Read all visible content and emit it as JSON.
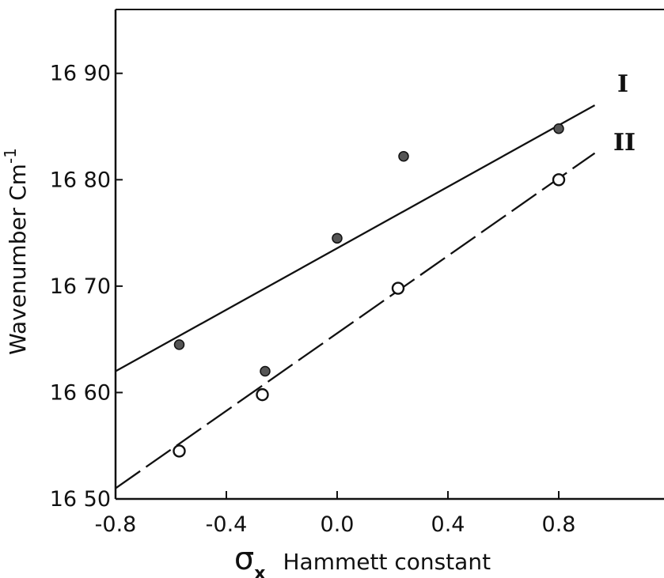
{
  "chart_data": {
    "type": "scatter",
    "xlabel": "Hammett constant",
    "xlabel_symbol": "σ",
    "xlabel_subscript": "x",
    "ylabel": "Wavenumber Cm",
    "ylabel_superscript": "-1",
    "xlim": [
      -0.8,
      1.18
    ],
    "ylim": [
      16.5,
      16.96
    ],
    "x_ticks": [
      -0.8,
      -0.4,
      0.0,
      0.4,
      0.8
    ],
    "x_tick_labels": [
      "-0.8",
      "-0.4",
      "0.0",
      "0.4",
      "0.8"
    ],
    "y_ticks": [
      16.5,
      16.6,
      16.7,
      16.8,
      16.9
    ],
    "y_tick_labels": [
      "16 50",
      "16 60",
      "16 70",
      "16 80",
      "16 90"
    ],
    "grid": false,
    "series": [
      {
        "name": "I",
        "marker": "filled",
        "line_style": "solid",
        "points": [
          {
            "x": -0.57,
            "y": 16.645
          },
          {
            "x": -0.26,
            "y": 16.62
          },
          {
            "x": 0.0,
            "y": 16.745
          },
          {
            "x": 0.24,
            "y": 16.822
          },
          {
            "x": 0.8,
            "y": 16.848
          }
        ],
        "fit_line": {
          "x": [
            -0.8,
            0.93
          ],
          "y": [
            16.62,
            16.87
          ]
        }
      },
      {
        "name": "II",
        "marker": "open",
        "line_style": "dashed",
        "points": [
          {
            "x": -0.57,
            "y": 16.545
          },
          {
            "x": -0.27,
            "y": 16.598
          },
          {
            "x": 0.22,
            "y": 16.698
          },
          {
            "x": 0.8,
            "y": 16.8
          }
        ],
        "fit_line": {
          "x": [
            -0.8,
            0.93
          ],
          "y": [
            16.51,
            16.825
          ]
        }
      }
    ]
  }
}
